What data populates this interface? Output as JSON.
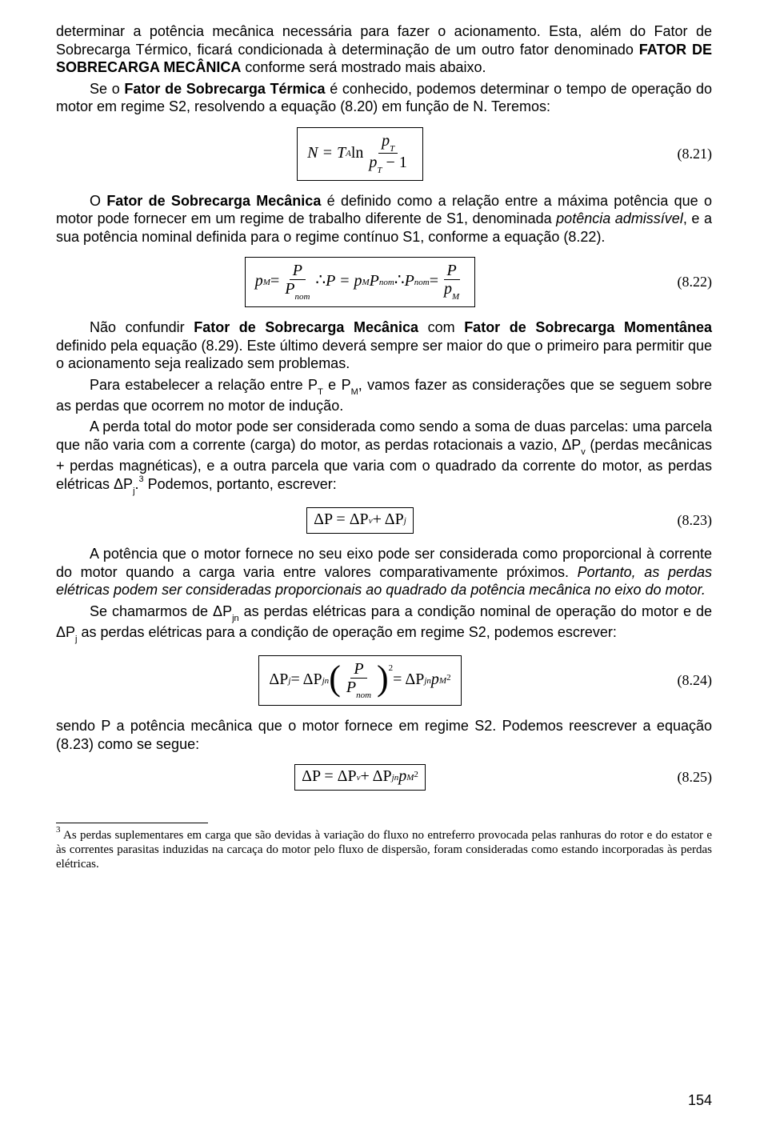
{
  "p1_pre": "determinar a potência mecânica necessária para fazer o acionamento. Esta, além do Fator de Sobrecarga Térmico, ficará condicionada à determinação de um outro fator denominado ",
  "p1_bold": "FATOR DE SOBRECARGA MECÂNICA",
  "p1_post": " conforme será mostrado mais abaixo.",
  "p2_pre": "Se o ",
  "p2_bold": "Fator de Sobrecarga Térmica",
  "p2_post": " é conhecido, podemos determinar o tempo de operação do motor em regime S2, resolvendo a equação (8.20) em função de N. Teremos:",
  "eq21": {
    "lhs": "N = T",
    "subA": "A",
    "ln": " ln ",
    "num": "p",
    "num_sub": "T",
    "den_pre": "p",
    "den_sub": "T",
    "den_post": " − 1",
    "num_label": "(8.21)"
  },
  "p3_pre": "O ",
  "p3_bold": "Fator de Sobrecarga Mecânica",
  "p3_mid": " é definido como a relação entre a máxima potência que o motor pode fornecer em um regime de trabalho diferente de S1, denominada ",
  "p3_ital": "potência admissível",
  "p3_post": ", e a sua potência nominal definida para o regime contínuo S1, conforme a equação (8.22).",
  "eq22": {
    "pM": "p",
    "pM_sub": "M",
    "eq": " = ",
    "P": "P",
    "Pnom": "P",
    "nom_sub": "nom",
    "sep": "  ∴  ",
    "eq2a": "P = p",
    "eq2b": " P",
    "num_label": "(8.22)"
  },
  "p4_pre": "Não confundir ",
  "p4_b1": "Fator de Sobrecarga Mecânica",
  "p4_mid": " com ",
  "p4_b2": "Fator de Sobrecarga Momentânea",
  "p4_post": " definido pela equação (8.29). Este último deverá sempre ser maior do que o primeiro para permitir que o acionamento seja realizado sem problemas.",
  "p5": "Para estabelecer a relação entre P",
  "p5_subT": "T",
  "p5_mid": " e P",
  "p5_subM": "M",
  "p5_post": ", vamos fazer as considerações que se seguem sobre as perdas que ocorrem no motor de indução.",
  "p6_a": "A perda total do motor pode ser considerada como sendo a soma de duas parcelas: uma parcela que não varia com a corrente (carga) do motor, as perdas rotacionais a vazio, ΔP",
  "p6_sub_v": "v",
  "p6_b": " (perdas mecânicas + perdas magnéticas), e a outra parcela que varia com o quadrado da corrente do motor, as perdas elétricas ΔP",
  "p6_sub_j": "j",
  "p6_c": ".",
  "p6_sup3": "3",
  "p6_d": " Podemos, portanto, escrever:",
  "eq23": {
    "text": "ΔP = ΔP",
    "sub_v": "v",
    "plus": " + ΔP",
    "sub_j": "j",
    "num_label": "(8.23)"
  },
  "p7_a": "A potência que o motor fornece no seu eixo pode ser considerada como proporcional à corrente do motor quando a carga varia entre valores comparativamente próximos. ",
  "p7_ital": "Portanto, as perdas elétricas podem ser consideradas proporcionais ao quadrado da potência mecânica no eixo do motor.",
  "p8_a": "Se chamarmos de ΔP",
  "p8_sub_jn": "jn",
  "p8_b": " as perdas elétricas para a condição nominal de operação do motor e de ΔP",
  "p8_sub_j": "j",
  "p8_c": " as perdas elétricas para a condição de operação em regime S2, podemos escrever:",
  "eq24": {
    "lhs": "ΔP",
    "sub_j": "j",
    "eq": " = ΔP",
    "sub_jn": "jn",
    "P": "P",
    "Pnom": "P",
    "nom_sub": "nom",
    "sup2": "2",
    "eq2": " = ΔP",
    "sub_jn2": "jn",
    "pM": " p",
    "pM_sub": "M",
    "num_label": "(8.24)"
  },
  "p9": "sendo P a potência mecânica que o motor fornece em regime S2. Podemos reescrever a equação (8.23) como se segue:",
  "eq25": {
    "lhs": "ΔP = ΔP",
    "sub_v": "v",
    "plus": " + ΔP",
    "sub_jn": "jn",
    "pM": " p",
    "pM_sub": "M",
    "sup2": "2",
    "num_label": "(8.25)"
  },
  "footnote_sup": "3",
  "footnote": " As perdas suplementares em carga que são devidas à variação do fluxo no entreferro provocada pelas ranhuras do rotor e do estator e às correntes parasitas induzidas na carcaça do motor pelo fluxo de dispersão, foram consideradas como estando incorporadas às perdas elétricas.",
  "page_number": "154"
}
